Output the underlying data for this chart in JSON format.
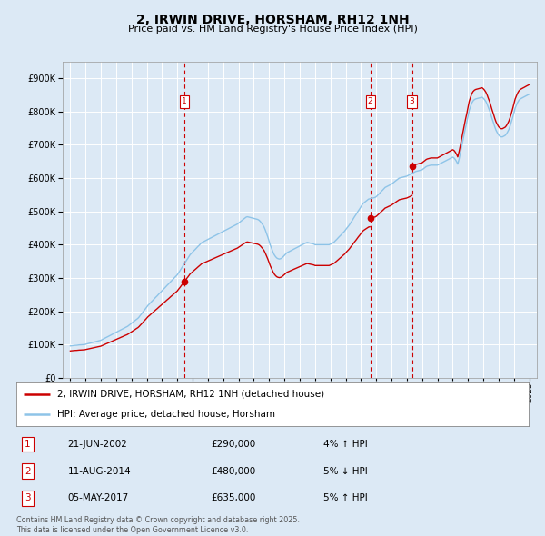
{
  "title": "2, IRWIN DRIVE, HORSHAM, RH12 1NH",
  "subtitle": "Price paid vs. HM Land Registry's House Price Index (HPI)",
  "ylim": [
    0,
    950000
  ],
  "yticks": [
    0,
    100000,
    200000,
    300000,
    400000,
    500000,
    600000,
    700000,
    800000,
    900000
  ],
  "xlim_start": 1994.5,
  "xlim_end": 2025.5,
  "background_color": "#dce9f5",
  "plot_bg_color": "#dce9f5",
  "grid_color": "#ffffff",
  "hpi_line_color": "#8ec4e8",
  "price_line_color": "#cc0000",
  "sale_marker_color": "#cc0000",
  "vline_color": "#cc0000",
  "transaction_label_color": "#cc0000",
  "footer_text": "Contains HM Land Registry data © Crown copyright and database right 2025.\nThis data is licensed under the Open Government Licence v3.0.",
  "legend_entry1": "2, IRWIN DRIVE, HORSHAM, RH12 1NH (detached house)",
  "legend_entry2": "HPI: Average price, detached house, Horsham",
  "transactions": [
    {
      "num": 1,
      "date_str": "21-JUN-2002",
      "date_x": 2002.47,
      "price": 290000,
      "hpi_pct": "4%",
      "direction": "↑"
    },
    {
      "num": 2,
      "date_str": "11-AUG-2014",
      "date_x": 2014.61,
      "price": 480000,
      "hpi_pct": "5%",
      "direction": "↓"
    },
    {
      "num": 3,
      "date_str": "05-MAY-2017",
      "date_x": 2017.34,
      "price": 635000,
      "hpi_pct": "5%",
      "direction": "↑"
    }
  ],
  "hpi_years": [
    1995.0,
    1995.08,
    1995.17,
    1995.25,
    1995.33,
    1995.42,
    1995.5,
    1995.58,
    1995.67,
    1995.75,
    1995.83,
    1995.92,
    1996.0,
    1996.08,
    1996.17,
    1996.25,
    1996.33,
    1996.42,
    1996.5,
    1996.58,
    1996.67,
    1996.75,
    1996.83,
    1996.92,
    1997.0,
    1997.08,
    1997.17,
    1997.25,
    1997.33,
    1997.42,
    1997.5,
    1997.58,
    1997.67,
    1997.75,
    1997.83,
    1997.92,
    1998.0,
    1998.08,
    1998.17,
    1998.25,
    1998.33,
    1998.42,
    1998.5,
    1998.58,
    1998.67,
    1998.75,
    1998.83,
    1998.92,
    1999.0,
    1999.08,
    1999.17,
    1999.25,
    1999.33,
    1999.42,
    1999.5,
    1999.58,
    1999.67,
    1999.75,
    1999.83,
    1999.92,
    2000.0,
    2000.08,
    2000.17,
    2000.25,
    2000.33,
    2000.42,
    2000.5,
    2000.58,
    2000.67,
    2000.75,
    2000.83,
    2000.92,
    2001.0,
    2001.08,
    2001.17,
    2001.25,
    2001.33,
    2001.42,
    2001.5,
    2001.58,
    2001.67,
    2001.75,
    2001.83,
    2001.92,
    2002.0,
    2002.08,
    2002.17,
    2002.25,
    2002.33,
    2002.42,
    2002.5,
    2002.58,
    2002.67,
    2002.75,
    2002.83,
    2002.92,
    2003.0,
    2003.08,
    2003.17,
    2003.25,
    2003.33,
    2003.42,
    2003.5,
    2003.58,
    2003.67,
    2003.75,
    2003.83,
    2003.92,
    2004.0,
    2004.08,
    2004.17,
    2004.25,
    2004.33,
    2004.42,
    2004.5,
    2004.58,
    2004.67,
    2004.75,
    2004.83,
    2004.92,
    2005.0,
    2005.08,
    2005.17,
    2005.25,
    2005.33,
    2005.42,
    2005.5,
    2005.58,
    2005.67,
    2005.75,
    2005.83,
    2005.92,
    2006.0,
    2006.08,
    2006.17,
    2006.25,
    2006.33,
    2006.42,
    2006.5,
    2006.58,
    2006.67,
    2006.75,
    2006.83,
    2006.92,
    2007.0,
    2007.08,
    2007.17,
    2007.25,
    2007.33,
    2007.42,
    2007.5,
    2007.58,
    2007.67,
    2007.75,
    2007.83,
    2007.92,
    2008.0,
    2008.08,
    2008.17,
    2008.25,
    2008.33,
    2008.42,
    2008.5,
    2008.58,
    2008.67,
    2008.75,
    2008.83,
    2008.92,
    2009.0,
    2009.08,
    2009.17,
    2009.25,
    2009.33,
    2009.42,
    2009.5,
    2009.58,
    2009.67,
    2009.75,
    2009.83,
    2009.92,
    2010.0,
    2010.08,
    2010.17,
    2010.25,
    2010.33,
    2010.42,
    2010.5,
    2010.58,
    2010.67,
    2010.75,
    2010.83,
    2010.92,
    2011.0,
    2011.08,
    2011.17,
    2011.25,
    2011.33,
    2011.42,
    2011.5,
    2011.58,
    2011.67,
    2011.75,
    2011.83,
    2011.92,
    2012.0,
    2012.08,
    2012.17,
    2012.25,
    2012.33,
    2012.42,
    2012.5,
    2012.58,
    2012.67,
    2012.75,
    2012.83,
    2012.92,
    2013.0,
    2013.08,
    2013.17,
    2013.25,
    2013.33,
    2013.42,
    2013.5,
    2013.58,
    2013.67,
    2013.75,
    2013.83,
    2013.92,
    2014.0,
    2014.08,
    2014.17,
    2014.25,
    2014.33,
    2014.42,
    2014.5,
    2014.58,
    2014.67,
    2014.75,
    2014.83,
    2014.92,
    2015.0,
    2015.08,
    2015.17,
    2015.25,
    2015.33,
    2015.42,
    2015.5,
    2015.58,
    2015.67,
    2015.75,
    2015.83,
    2015.92,
    2016.0,
    2016.08,
    2016.17,
    2016.25,
    2016.33,
    2016.42,
    2016.5,
    2016.58,
    2016.67,
    2016.75,
    2016.83,
    2016.92,
    2017.0,
    2017.08,
    2017.17,
    2017.25,
    2017.33,
    2017.42,
    2017.5,
    2017.58,
    2017.67,
    2017.75,
    2017.83,
    2017.92,
    2018.0,
    2018.08,
    2018.17,
    2018.25,
    2018.33,
    2018.42,
    2018.5,
    2018.58,
    2018.67,
    2018.75,
    2018.83,
    2018.92,
    2019.0,
    2019.08,
    2019.17,
    2019.25,
    2019.33,
    2019.42,
    2019.5,
    2019.58,
    2019.67,
    2019.75,
    2019.83,
    2019.92,
    2020.0,
    2020.08,
    2020.17,
    2020.25,
    2020.33,
    2020.42,
    2020.5,
    2020.58,
    2020.67,
    2020.75,
    2020.83,
    2020.92,
    2021.0,
    2021.08,
    2021.17,
    2021.25,
    2021.33,
    2021.42,
    2021.5,
    2021.58,
    2021.67,
    2021.75,
    2021.83,
    2021.92,
    2022.0,
    2022.08,
    2022.17,
    2022.25,
    2022.33,
    2022.42,
    2022.5,
    2022.58,
    2022.67,
    2022.75,
    2022.83,
    2022.92,
    2023.0,
    2023.08,
    2023.17,
    2023.25,
    2023.33,
    2023.42,
    2023.5,
    2023.58,
    2023.67,
    2023.75,
    2023.83,
    2023.92,
    2024.0,
    2024.08,
    2024.17,
    2024.25,
    2024.33,
    2024.42,
    2024.5,
    2024.58,
    2024.67,
    2024.75,
    2024.83,
    2024.92,
    2025.0
  ],
  "hpi_vals": [
    96000,
    96500,
    97000,
    97500,
    97800,
    98000,
    98500,
    99000,
    99200,
    99500,
    99800,
    100000,
    101000,
    102000,
    103000,
    104000,
    105000,
    106000,
    107000,
    108000,
    109000,
    110000,
    111000,
    112000,
    113000,
    115000,
    117000,
    119000,
    121000,
    123000,
    125000,
    127000,
    129000,
    131000,
    133000,
    135000,
    137000,
    139000,
    141000,
    143000,
    145000,
    147000,
    149000,
    151000,
    153000,
    155000,
    158000,
    161000,
    164000,
    167000,
    170000,
    173000,
    176000,
    179000,
    183000,
    188000,
    193000,
    198000,
    203000,
    208000,
    213000,
    218000,
    222000,
    226000,
    230000,
    234000,
    238000,
    242000,
    246000,
    250000,
    254000,
    258000,
    262000,
    266000,
    270000,
    274000,
    278000,
    282000,
    286000,
    290000,
    294000,
    298000,
    302000,
    306000,
    310000,
    316000,
    322000,
    328000,
    334000,
    340000,
    346000,
    352000,
    358000,
    364000,
    370000,
    374000,
    378000,
    382000,
    386000,
    390000,
    394000,
    398000,
    402000,
    406000,
    408000,
    410000,
    412000,
    414000,
    416000,
    418000,
    420000,
    422000,
    424000,
    426000,
    428000,
    430000,
    432000,
    434000,
    436000,
    438000,
    440000,
    442000,
    444000,
    446000,
    448000,
    450000,
    452000,
    454000,
    456000,
    458000,
    460000,
    462000,
    465000,
    468000,
    471000,
    474000,
    477000,
    480000,
    483000,
    484000,
    483000,
    482000,
    481000,
    480000,
    479000,
    478000,
    477000,
    476000,
    474000,
    470000,
    465000,
    460000,
    453000,
    444000,
    434000,
    422000,
    410000,
    398000,
    388000,
    378000,
    370000,
    364000,
    360000,
    358000,
    357000,
    358000,
    360000,
    364000,
    368000,
    372000,
    376000,
    378000,
    380000,
    382000,
    384000,
    386000,
    388000,
    390000,
    392000,
    394000,
    396000,
    398000,
    400000,
    402000,
    404000,
    406000,
    407000,
    406000,
    405000,
    404000,
    403000,
    402000,
    400000,
    400000,
    400000,
    400000,
    400000,
    400000,
    400000,
    400000,
    400000,
    400000,
    400000,
    400000,
    402000,
    404000,
    406000,
    408000,
    412000,
    416000,
    420000,
    424000,
    428000,
    432000,
    436000,
    440000,
    445000,
    450000,
    455000,
    460000,
    466000,
    472000,
    478000,
    484000,
    490000,
    496000,
    502000,
    508000,
    514000,
    520000,
    525000,
    528000,
    531000,
    534000,
    537000,
    538000,
    539000,
    540000,
    541000,
    542000,
    544000,
    548000,
    552000,
    556000,
    560000,
    564000,
    568000,
    572000,
    574000,
    576000,
    578000,
    580000,
    582000,
    585000,
    588000,
    591000,
    594000,
    597000,
    600000,
    601000,
    602000,
    603000,
    604000,
    605000,
    606000,
    608000,
    610000,
    612000,
    614000,
    616000,
    618000,
    620000,
    621000,
    622000,
    623000,
    624000,
    625000,
    628000,
    631000,
    634000,
    636000,
    637000,
    638000,
    639000,
    639000,
    639000,
    639000,
    639000,
    639000,
    641000,
    643000,
    645000,
    647000,
    649000,
    651000,
    653000,
    655000,
    657000,
    659000,
    661000,
    663000,
    661000,
    656000,
    650000,
    642000,
    658000,
    675000,
    694000,
    714000,
    732000,
    750000,
    768000,
    786000,
    804000,
    816000,
    826000,
    832000,
    836000,
    838000,
    839000,
    840000,
    841000,
    842000,
    843000,
    840000,
    836000,
    830000,
    822000,
    812000,
    802000,
    790000,
    778000,
    766000,
    754000,
    744000,
    736000,
    730000,
    726000,
    724000,
    724000,
    726000,
    728000,
    732000,
    738000,
    746000,
    756000,
    768000,
    782000,
    796000,
    810000,
    820000,
    828000,
    834000,
    838000,
    840000,
    842000,
    844000,
    846000,
    848000,
    850000,
    852000
  ]
}
